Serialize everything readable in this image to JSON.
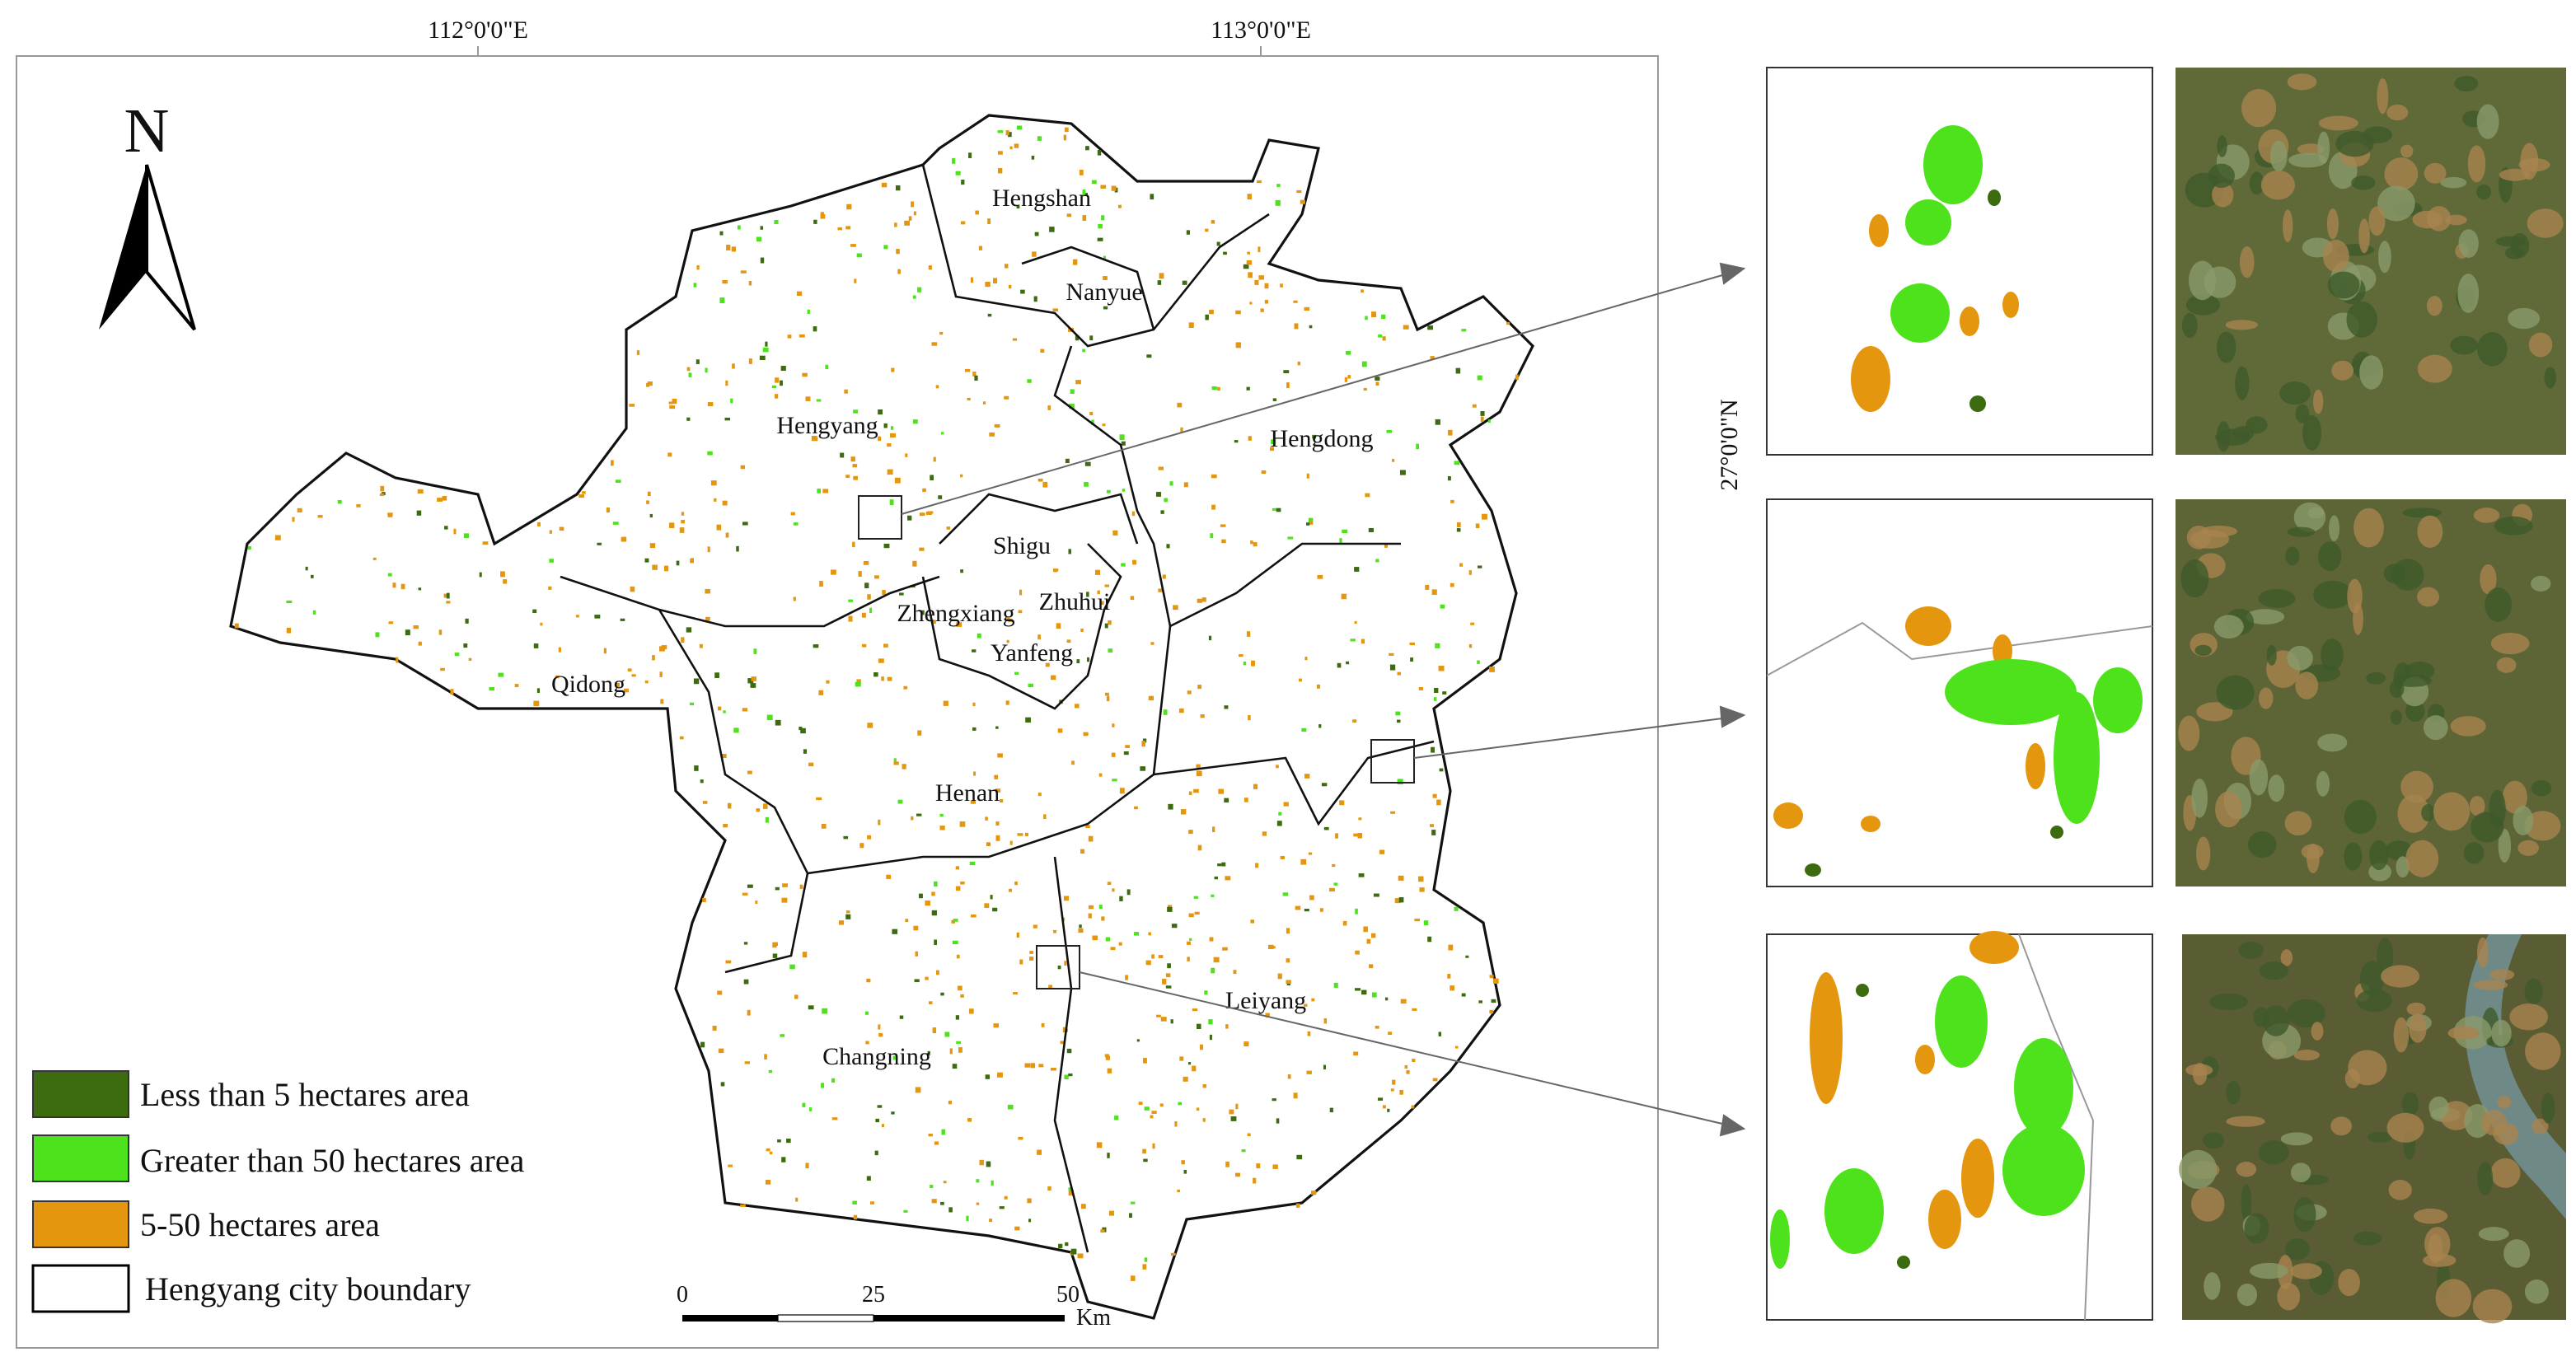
{
  "graticule": {
    "lon": [
      "112°0'0\"E",
      "113°0'0\"E"
    ],
    "lat": [
      "27°0'0\"N"
    ]
  },
  "north": "N",
  "counties": [
    "Hengshan",
    "Nanyue",
    "Hengyang",
    "Hengdong",
    "Shigu",
    "Zhuhui",
    "Zhengxiang",
    "Yanfeng",
    "Qidong",
    "Henan",
    "Changning",
    "Leiyang"
  ],
  "legend": [
    "Less  than 5 hectares area",
    "Greater than 50 hectares area",
    "5-50 hectares area",
    "Hengyang city boundary"
  ],
  "scale": {
    "labels": [
      "0",
      "25",
      "50"
    ],
    "unit": "Km"
  }
}
